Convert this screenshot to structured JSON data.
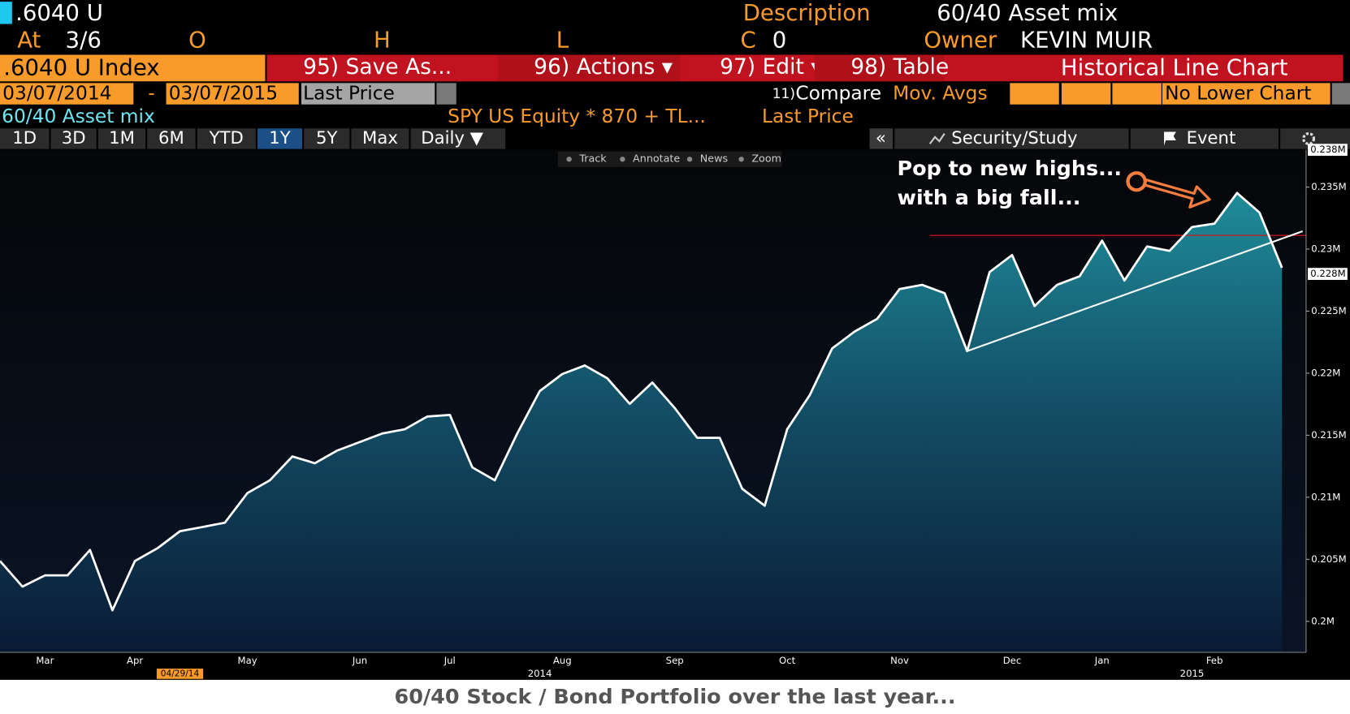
{
  "header": {
    "ticker": ".6040 U",
    "description_label": "Description",
    "description": "60/40 Asset mix",
    "at_label": "At",
    "at_value": "3/6",
    "open_label": "O",
    "high_label": "H",
    "low_label": "L",
    "close_label": "C",
    "close_value": "0",
    "owner_label": "Owner",
    "owner": "KEVIN MUIR"
  },
  "menu": {
    "security": ".6040 U Index",
    "items": [
      "95) Save As...",
      "96) Actions ▾",
      "97) Edit ▾",
      "98) Table"
    ],
    "view": "Historical Line Chart"
  },
  "range": {
    "start": "03/07/2014",
    "separator": "-",
    "end": "03/07/2015",
    "field": "Last Price",
    "compare_num": "11)",
    "compare": "Compare",
    "mov_avgs": "Mov. Avgs",
    "lower_chart": "No Lower Chart"
  },
  "legend": {
    "overlay": "SPY US Equity * 870 + TL...",
    "field": "Last Price"
  },
  "periods": {
    "buttons": [
      "1D",
      "3D",
      "1M",
      "6M",
      "YTD",
      "1Y",
      "5Y",
      "Max"
    ],
    "active_index": 5,
    "frequency": "Daily ▼"
  },
  "side_tools": {
    "collapse": "«",
    "study": "Security/Study",
    "event": "Event"
  },
  "chart_tools": [
    "Track",
    "Annotate",
    "News",
    "Zoom"
  ],
  "chart_data": {
    "type": "line",
    "categories": [
      null,
      null,
      "Mar",
      null,
      null,
      null,
      "Apr",
      null,
      null,
      null,
      null,
      "May",
      null,
      null,
      null,
      null,
      "Jun",
      null,
      null,
      null,
      "Jul",
      null,
      null,
      null,
      null,
      "Aug",
      null,
      null,
      null,
      null,
      "Sep",
      null,
      null,
      null,
      null,
      "Oct",
      null,
      null,
      null,
      null,
      "Nov",
      null,
      null,
      null,
      null,
      "Dec",
      null,
      null,
      null,
      "Jan",
      null,
      null,
      null,
      null,
      "Feb",
      null,
      null,
      null
    ],
    "group_labels": [
      null,
      null,
      null,
      null,
      null,
      null,
      null,
      null,
      null,
      null,
      null,
      null,
      null,
      null,
      null,
      null,
      null,
      null,
      null,
      null,
      null,
      null,
      null,
      null,
      "2014",
      null,
      null,
      null,
      null,
      null,
      null,
      null,
      null,
      null,
      null,
      null,
      null,
      null,
      null,
      null,
      null,
      null,
      null,
      null,
      null,
      null,
      null,
      null,
      null,
      null,
      null,
      null,
      null,
      "2015",
      null,
      null,
      null,
      null
    ],
    "marker_labels": [
      null,
      null,
      null,
      null,
      null,
      null,
      null,
      null,
      "04/29/14",
      null,
      null,
      null,
      null,
      null,
      null,
      null,
      null,
      null,
      null,
      null,
      null,
      null,
      null,
      null,
      null,
      null,
      null,
      null,
      null,
      null,
      null,
      null,
      null,
      null,
      null,
      null,
      null,
      null,
      null,
      null,
      null,
      null,
      null,
      null,
      null,
      null,
      null,
      null,
      null,
      null,
      null,
      null,
      null,
      null,
      null,
      null,
      null,
      null
    ],
    "series": [
      {
        "name": "60/40 Asset mix",
        "color": "#ffffff",
        "values": [
          204860,
          202800,
          203700,
          203700,
          205750,
          200890,
          204860,
          205890,
          207260,
          207600,
          207950,
          210340,
          211370,
          213290,
          212740,
          213770,
          214450,
          215140,
          215480,
          216510,
          216640,
          212400,
          211370,
          215140,
          218560,
          219930,
          220620,
          219590,
          217530,
          219250,
          217190,
          214790,
          214790,
          210680,
          209320,
          215480,
          218220,
          221990,
          223360,
          224380,
          226780,
          227120,
          226440,
          221780,
          228150,
          229520,
          225410,
          227120,
          227810,
          230680,
          227470,
          230210,
          229860,
          231780,
          232050,
          234520,
          232940,
          228490
        ]
      }
    ],
    "ylim": [
      197500,
      238000
    ],
    "yticks": [
      {
        "value": 200000,
        "label": "0.2M"
      },
      {
        "value": 205000,
        "label": "0.205M"
      },
      {
        "value": 210000,
        "label": "0.21M"
      },
      {
        "value": 215000,
        "label": "0.215M"
      },
      {
        "value": 220000,
        "label": "0.22M"
      },
      {
        "value": 225000,
        "label": "0.225M"
      },
      {
        "value": 230000,
        "label": "0.23M"
      },
      {
        "value": 235000,
        "label": "0.235M"
      }
    ],
    "price_tags": [
      {
        "value": 238000,
        "label": "0.238M"
      },
      {
        "value": 228000,
        "label": "0.228M"
      }
    ],
    "reference_line": 231100,
    "reference_color": "#d0141c",
    "annotation": [
      "Pop to new highs...",
      "with a big fall..."
    ]
  },
  "caption": "60/40 Stock / Bond Portfolio over the last year..."
}
